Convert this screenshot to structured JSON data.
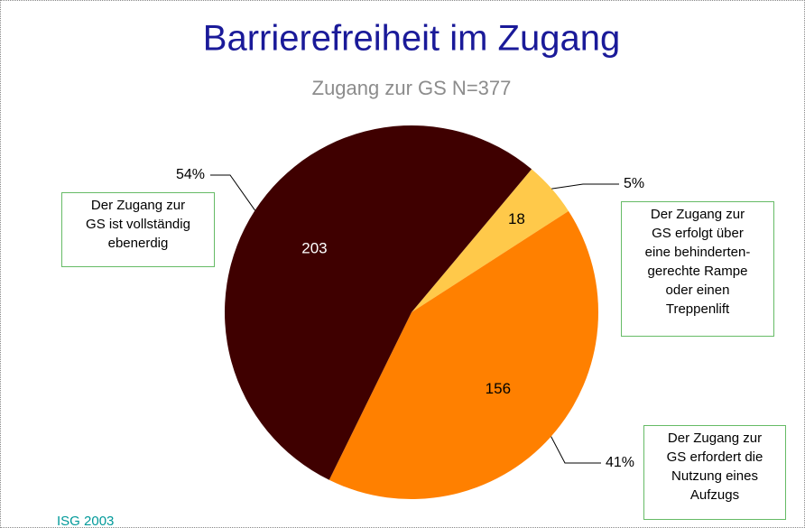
{
  "chart_data": {
    "type": "pie",
    "title": "Barrierefreiheit im Zugang",
    "subtitle": "Zugang zur GS  N=377",
    "categories": [
      "Der Zugang zur\nGS erfolgt über\neine behinderten-\ngerechte Rampe\noder einen\nTreppenlift",
      "Der Zugang zur\nGS erfordert die\nNutzung eines\nAufzugs",
      "Der Zugang zur\nGS ist vollständig\nebenerdig"
    ],
    "values": [
      18,
      156,
      203
    ],
    "percent_labels": [
      "5%",
      "41%",
      "54%"
    ],
    "colors": [
      "#ffc94a",
      "#ff8000",
      "#3f0000"
    ],
    "source": "ISG 2003"
  }
}
